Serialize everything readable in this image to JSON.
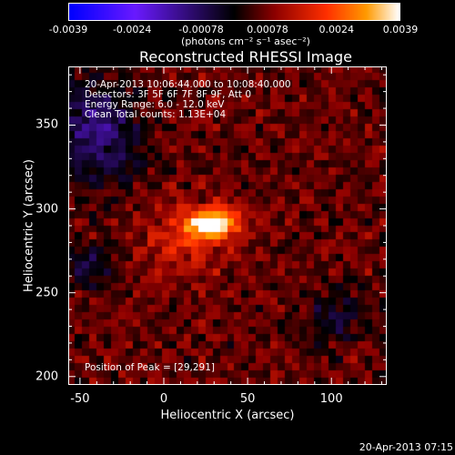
{
  "colorbar": {
    "tick_labels": [
      "-0.0039",
      "-0.0024",
      "-0.00078",
      "0.00078",
      "0.0024",
      "0.0039"
    ],
    "tick_values": [
      -0.0039,
      -0.0024,
      -0.00078,
      0.00078,
      0.0024,
      0.0039
    ],
    "range": [
      -0.0039,
      0.0039
    ],
    "unit": "(photons cm⁻² s⁻¹ asec⁻²)",
    "colormap": [
      "#0000ff",
      "#6a1aff",
      "#000000",
      "#8b0000",
      "#ff3000",
      "#ff9a00",
      "#ffffff"
    ]
  },
  "title": "Reconstructed RHESSI Image",
  "info": {
    "line1": "20-Apr-2013 10:06:44.000 to 10:08:40.000",
    "line2": "Detectors: 3F 5F 6F 7F 8F 9F, Att 0",
    "line3": "Energy Range: 6.0 - 12.0 keV",
    "line4": "Clean    Total counts: 1.13E+04"
  },
  "peak_label": "Position of Peak = [29,291]",
  "timestamp": "20-Apr-2013 07:15",
  "chart_data": {
    "type": "heatmap",
    "title": "Reconstructed RHESSI Image",
    "xlabel": "Heliocentric X (arcsec)",
    "ylabel": "Heliocentric Y (arcsec)",
    "xlim": [
      -57,
      133
    ],
    "ylim": [
      195,
      385
    ],
    "x_ticks": [
      -50,
      0,
      50,
      100
    ],
    "y_ticks": [
      200,
      250,
      300,
      350
    ],
    "x_tick_labels": [
      "-50",
      "0",
      "50",
      "100"
    ],
    "y_tick_labels": [
      "200",
      "250",
      "300",
      "350"
    ],
    "peak": {
      "x": 29,
      "y": 291
    },
    "value_range": [
      -0.0039,
      0.0039
    ],
    "grid": false
  }
}
